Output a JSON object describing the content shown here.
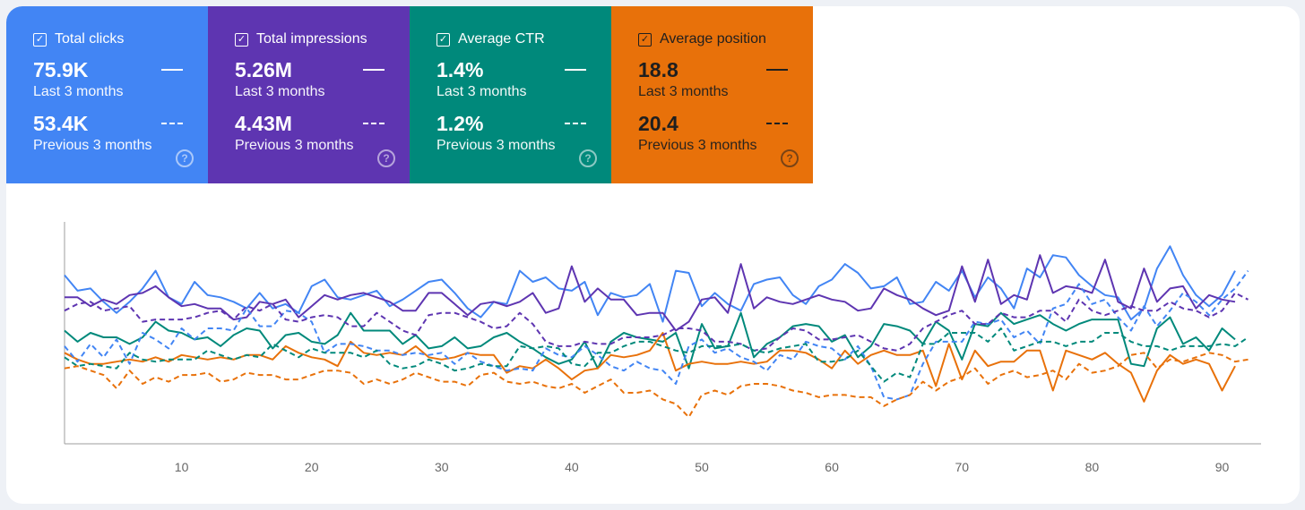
{
  "cards": [
    {
      "label": "Total clicks",
      "current": "75.9K",
      "current_period": "Last 3 months",
      "previous": "53.4K",
      "previous_period": "Previous 3 months",
      "color": "#4285f4",
      "checked": true
    },
    {
      "label": "Total impressions",
      "current": "5.26M",
      "current_period": "Last 3 months",
      "previous": "4.43M",
      "previous_period": "Previous 3 months",
      "color": "#5e35b1",
      "checked": true
    },
    {
      "label": "Average CTR",
      "current": "1.4%",
      "current_period": "Last 3 months",
      "previous": "1.2%",
      "previous_period": "Previous 3 months",
      "color": "#00897b",
      "checked": true
    },
    {
      "label": "Average position",
      "current": "18.8",
      "current_period": "Last 3 months",
      "previous": "20.4",
      "previous_period": "Previous 3 months",
      "color": "#e8710a",
      "checked": true
    }
  ],
  "chart_data": {
    "type": "line",
    "x_ticks": [
      "10",
      "20",
      "30",
      "40",
      "50",
      "60",
      "70",
      "80",
      "90"
    ],
    "x_tick_values": [
      10,
      20,
      30,
      40,
      50,
      60,
      70,
      80,
      90
    ],
    "xlim": [
      1,
      93
    ],
    "ylim": [
      0,
      100
    ],
    "series": [
      {
        "color": "#4285f4",
        "style": "solid",
        "values": [
          76,
          69,
          70,
          64,
          59,
          64,
          70,
          78,
          66,
          63,
          73,
          67,
          66,
          64,
          61,
          68,
          61,
          63,
          59,
          71,
          74,
          66,
          65,
          67,
          69,
          62,
          65,
          69,
          73,
          74,
          68,
          61,
          57,
          64,
          63,
          78,
          73,
          75,
          70,
          69,
          73,
          58,
          68,
          66,
          67,
          72,
          55,
          78,
          77,
          62,
          68,
          63,
          60,
          72,
          74,
          75,
          67,
          63,
          71,
          74,
          81,
          77,
          70,
          71,
          75,
          63,
          64,
          73,
          69,
          78,
          66,
          75,
          70,
          61,
          79,
          75,
          85,
          84,
          76,
          71,
          67,
          66,
          56,
          61,
          79,
          89,
          76,
          67,
          62,
          67,
          78
        ]
      },
      {
        "color": "#5e35b1",
        "style": "solid",
        "values": [
          66,
          66,
          62,
          65,
          63,
          67,
          68,
          71,
          66,
          62,
          63,
          61,
          61,
          56,
          57,
          64,
          63,
          65,
          57,
          62,
          67,
          65,
          67,
          68,
          66,
          64,
          60,
          60,
          68,
          68,
          63,
          58,
          63,
          64,
          62,
          64,
          68,
          59,
          61,
          80,
          64,
          70,
          65,
          65,
          58,
          59,
          59,
          51,
          55,
          65,
          66,
          59,
          81,
          61,
          66,
          64,
          63,
          65,
          67,
          65,
          64,
          60,
          61,
          70,
          67,
          65,
          61,
          58,
          60,
          80,
          64,
          83,
          63,
          67,
          65,
          85,
          68,
          71,
          70,
          68,
          83,
          64,
          61,
          79,
          64,
          70,
          71,
          61,
          67,
          65,
          64
        ]
      },
      {
        "color": "#00897b",
        "style": "solid",
        "values": [
          51,
          46,
          50,
          48,
          48,
          45,
          48,
          55,
          51,
          50,
          47,
          48,
          44,
          49,
          52,
          51,
          43,
          49,
          50,
          46,
          45,
          49,
          59,
          51,
          51,
          51,
          45,
          49,
          43,
          44,
          48,
          43,
          44,
          48,
          50,
          46,
          43,
          39,
          36,
          38,
          46,
          34,
          46,
          50,
          48,
          47,
          46,
          50,
          34,
          54,
          43,
          44,
          59,
          39,
          45,
          48,
          53,
          54,
          53,
          46,
          49,
          39,
          44,
          54,
          53,
          51,
          45,
          55,
          51,
          38,
          54,
          53,
          59,
          54,
          56,
          58,
          54,
          51,
          54,
          56,
          56,
          56,
          36,
          35,
          52,
          57,
          45,
          48,
          42,
          52,
          47
        ]
      },
      {
        "color": "#e8710a",
        "style": "solid",
        "values": [
          41,
          38,
          36,
          36,
          37,
          38,
          37,
          39,
          37,
          40,
          39,
          38,
          39,
          38,
          40,
          40,
          38,
          44,
          41,
          39,
          38,
          35,
          46,
          41,
          40,
          41,
          40,
          44,
          39,
          38,
          39,
          41,
          40,
          40,
          32,
          35,
          34,
          38,
          34,
          29,
          33,
          34,
          40,
          39,
          40,
          42,
          50,
          33,
          36,
          37,
          36,
          36,
          37,
          36,
          37,
          42,
          42,
          41,
          38,
          34,
          42,
          36,
          40,
          42,
          40,
          40,
          42,
          26,
          45,
          29,
          42,
          35,
          37,
          37,
          42,
          42,
          24,
          42,
          40,
          38,
          41,
          36,
          32,
          19,
          33,
          40,
          36,
          38,
          36,
          24,
          35
        ]
      },
      {
        "color": "#4285f4",
        "style": "dashed",
        "values": [
          44,
          37,
          45,
          39,
          47,
          36,
          50,
          47,
          43,
          52,
          47,
          52,
          52,
          51,
          61,
          53,
          53,
          60,
          59,
          55,
          41,
          45,
          45,
          44,
          42,
          42,
          40,
          41,
          40,
          41,
          36,
          41,
          37,
          35,
          33,
          34,
          33,
          43,
          40,
          39,
          44,
          40,
          35,
          33,
          37,
          34,
          33,
          27,
          44,
          47,
          41,
          43,
          39,
          37,
          33,
          40,
          38,
          46,
          44,
          43,
          38,
          44,
          35,
          21,
          20,
          22,
          36,
          46,
          46,
          46,
          55,
          54,
          56,
          48,
          51,
          45,
          61,
          63,
          72,
          63,
          65,
          57,
          51,
          62,
          53,
          60,
          68,
          64,
          58,
          65,
          70,
          78
        ]
      },
      {
        "color": "#5e35b1",
        "style": "dashed",
        "values": [
          60,
          63,
          64,
          60,
          61,
          62,
          55,
          56,
          56,
          56,
          57,
          59,
          60,
          56,
          62,
          60,
          63,
          56,
          55,
          57,
          58,
          57,
          53,
          53,
          59,
          55,
          51,
          49,
          58,
          59,
          59,
          57,
          55,
          52,
          53,
          59,
          54,
          46,
          44,
          44,
          46,
          45,
          45,
          48,
          48,
          48,
          49,
          52,
          52,
          51,
          46,
          46,
          45,
          42,
          43,
          48,
          52,
          51,
          47,
          47,
          48,
          49,
          46,
          43,
          42,
          45,
          52,
          55,
          58,
          60,
          54,
          54,
          59,
          57,
          57,
          60,
          60,
          55,
          65,
          60,
          58,
          60,
          62,
          60,
          60,
          64,
          61,
          60,
          57,
          60,
          68,
          65
        ]
      },
      {
        "color": "#00897b",
        "style": "dashed",
        "values": [
          39,
          35,
          36,
          35,
          34,
          41,
          38,
          37,
          38,
          38,
          38,
          42,
          40,
          38,
          40,
          39,
          45,
          42,
          39,
          43,
          41,
          41,
          41,
          39,
          42,
          36,
          34,
          35,
          38,
          36,
          33,
          34,
          36,
          35,
          35,
          44,
          43,
          44,
          43,
          36,
          35,
          41,
          41,
          44,
          46,
          46,
          44,
          42,
          41,
          44,
          44,
          44,
          45,
          42,
          41,
          43,
          44,
          45,
          37,
          37,
          38,
          42,
          35,
          28,
          32,
          30,
          45,
          45,
          50,
          50,
          50,
          46,
          52,
          42,
          44,
          46,
          46,
          44,
          46,
          46,
          50,
          50,
          46,
          44,
          44,
          42,
          44,
          44,
          44,
          45,
          44,
          48
        ]
      },
      {
        "color": "#e8710a",
        "style": "dashed",
        "values": [
          34,
          35,
          33,
          31,
          25,
          33,
          27,
          30,
          28,
          31,
          31,
          32,
          28,
          29,
          32,
          31,
          31,
          29,
          29,
          31,
          33,
          33,
          32,
          27,
          29,
          27,
          29,
          32,
          30,
          28,
          28,
          26,
          31,
          32,
          28,
          27,
          28,
          26,
          25,
          27,
          23,
          26,
          29,
          23,
          23,
          24,
          20,
          18,
          12,
          22,
          24,
          22,
          26,
          27,
          27,
          26,
          24,
          23,
          21,
          22,
          22,
          21,
          21,
          17,
          20,
          22,
          28,
          24,
          28,
          30,
          34,
          27,
          31,
          33,
          30,
          31,
          33,
          29,
          36,
          32,
          33,
          35,
          40,
          41,
          34,
          38,
          37,
          39,
          41,
          40,
          37,
          38
        ]
      }
    ]
  }
}
